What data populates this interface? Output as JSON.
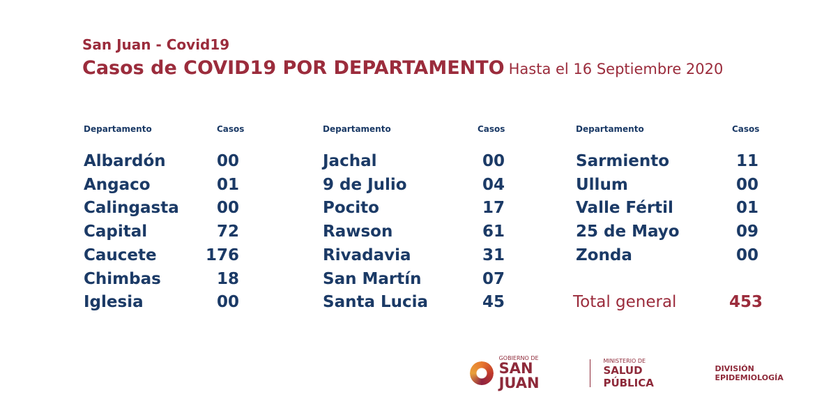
{
  "header": {
    "subtitle": "San Juan - Covid19",
    "title": "Casos de COVID19 POR DEPARTAMENTO",
    "date": "Hasta el 16 Septiembre 2020"
  },
  "columns": [
    {
      "dept_header": "Departamento",
      "cases_header": "Casos",
      "rows": [
        {
          "name": "Albardón",
          "cases": "00"
        },
        {
          "name": "Angaco",
          "cases": "01"
        },
        {
          "name": "Calingasta",
          "cases": "00"
        },
        {
          "name": "Capital",
          "cases": "72"
        },
        {
          "name": "Caucete",
          "cases": "176"
        },
        {
          "name": "Chimbas",
          "cases": "18"
        },
        {
          "name": "Iglesia",
          "cases": "00"
        }
      ]
    },
    {
      "dept_header": "Departamento",
      "cases_header": "Casos",
      "rows": [
        {
          "name": "Jachal",
          "cases": "00"
        },
        {
          "name": "9 de Julio",
          "cases": "04"
        },
        {
          "name": "Pocito",
          "cases": "17"
        },
        {
          "name": "Rawson",
          "cases": "61"
        },
        {
          "name": "Rivadavia",
          "cases": "31"
        },
        {
          "name": "San Martín",
          "cases": "07"
        },
        {
          "name": "Santa Lucia",
          "cases": "45"
        }
      ]
    },
    {
      "dept_header": "Departamento",
      "cases_header": "Casos",
      "rows": [
        {
          "name": "Sarmiento",
          "cases": "11"
        },
        {
          "name": "Ullum",
          "cases": "00"
        },
        {
          "name": "Valle Fértil",
          "cases": "01"
        },
        {
          "name": "25 de Mayo",
          "cases": "09"
        },
        {
          "name": "Zonda",
          "cases": "00"
        }
      ]
    }
  ],
  "total": {
    "label": "Total general",
    "value": "453"
  },
  "footer": {
    "gob_small": "GOBIERNO DE",
    "gob_big": "SAN JUAN",
    "min_small": "MINISTERIO DE",
    "min_big": "SALUD PÚBLICA",
    "division": "DIVISIÓN EPIDEMIOLOGÍA"
  },
  "colors": {
    "red": "#9b2c3c",
    "navy": "#1b3a66"
  }
}
